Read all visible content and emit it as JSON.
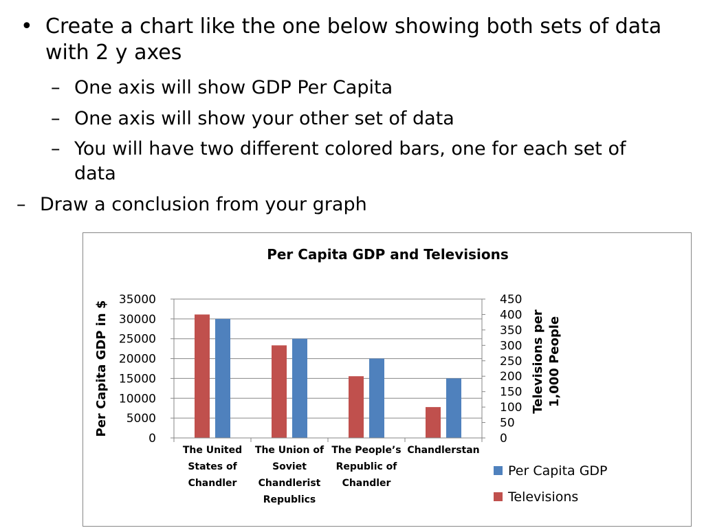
{
  "bullets": {
    "main": "Create a chart like the one below showing both sets of data with 2 y axes",
    "sub1": "One axis will show GDP Per Capita",
    "sub2": "One axis will show your other set of data",
    "sub3": "You will have two different colored bars, one for each set of data",
    "sub4": "Draw a conclusion from your graph",
    "bullet_glyph": "•",
    "dash_glyph": "–"
  },
  "chart_data": {
    "type": "bar",
    "title": "Per Capita GDP and Televisions",
    "ylabel": "Per Capita GDP in $",
    "ylabel2": "Televisions per 1,000 People",
    "ylim": [
      0,
      35000
    ],
    "ylim2": [
      0,
      450
    ],
    "yticks": [
      0,
      5000,
      10000,
      15000,
      20000,
      25000,
      30000,
      35000
    ],
    "yticks2": [
      0,
      50,
      100,
      150,
      200,
      250,
      300,
      350,
      400,
      450
    ],
    "categories": [
      "The United States of Chandler",
      "The Union of Soviet Chandlerist Republics",
      "The People’s Republic of Chandler",
      "Chandlerstan"
    ],
    "series": [
      {
        "name": "Televisions",
        "axis": "right",
        "color": "#C0504D",
        "values": [
          400,
          300,
          200,
          100
        ]
      },
      {
        "name": "Per Capita GDP",
        "axis": "left",
        "color": "#4F81BD",
        "values": [
          30000,
          25000,
          20000,
          15000
        ]
      }
    ],
    "grid": true,
    "legend": "right",
    "legend_order": [
      "Per Capita GDP",
      "Televisions"
    ]
  }
}
